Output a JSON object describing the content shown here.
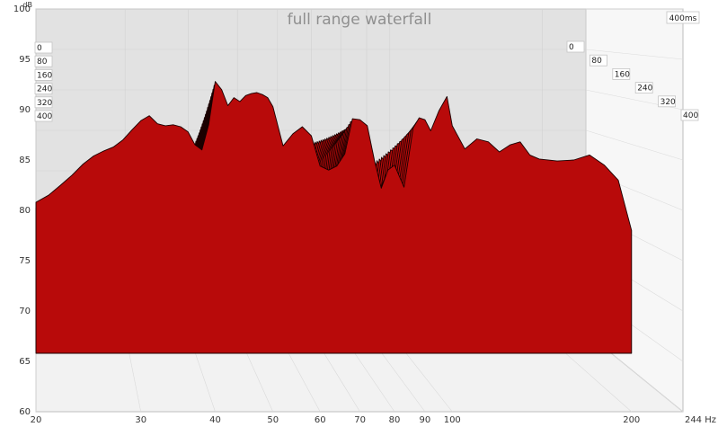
{
  "chart_data": {
    "type": "area",
    "title": "full range waterfall",
    "ylabel": "dB",
    "xlabel": "",
    "x_unit_label": "244 Hz",
    "x_scale": "log",
    "xlim": [
      20,
      244
    ],
    "ylim": [
      60,
      100
    ],
    "x_ticks": [
      20,
      30,
      40,
      50,
      60,
      70,
      80,
      90,
      100,
      200
    ],
    "y_ticks": [
      60,
      65,
      70,
      75,
      80,
      85,
      90,
      95,
      100
    ],
    "z_label": "400ms",
    "time_ticks_left": [
      "0",
      "80",
      "160",
      "240",
      "320",
      "400"
    ],
    "time_ticks_right": [
      "0",
      "80",
      "160",
      "240",
      "320",
      "400"
    ],
    "grid": true,
    "fill_color": "#b80a0a",
    "line_color": "#1a0000",
    "back_wall_color": "#e2e2e2",
    "floor_color": "#f2f2f2",
    "slice_count": 26,
    "front_slice_ms": 0,
    "back_slice_ms": 400,
    "front_slice": {
      "freq_hz": [
        20,
        21,
        22,
        23,
        24,
        25,
        26,
        27,
        28,
        29,
        30,
        31,
        32,
        33,
        34,
        35,
        36,
        37,
        38,
        39,
        40,
        41,
        42,
        43,
        44,
        45,
        46,
        47,
        48,
        49,
        50,
        52,
        54,
        56,
        58,
        60,
        62,
        64,
        66,
        68,
        70,
        72,
        74,
        76,
        78,
        80,
        83,
        86,
        88,
        90,
        92,
        95,
        98,
        100,
        105,
        110,
        115,
        120,
        125,
        130,
        135,
        140,
        150,
        160,
        170,
        180,
        190,
        200
      ],
      "db": [
        80.8,
        81.5,
        82.5,
        83.5,
        84.6,
        85.4,
        85.9,
        86.3,
        87.0,
        88.0,
        88.9,
        89.4,
        88.6,
        88.4,
        88.5,
        88.3,
        87.8,
        86.5,
        86.0,
        88.5,
        92.8,
        92.0,
        90.4,
        91.2,
        90.8,
        91.4,
        91.6,
        91.7,
        91.5,
        91.2,
        90.3,
        86.4,
        87.6,
        88.3,
        87.4,
        84.4,
        84.0,
        84.4,
        85.6,
        89.1,
        89.0,
        88.4,
        85.0,
        82.2,
        84.0,
        84.5,
        82.3,
        88.2,
        89.2,
        89.0,
        87.9,
        89.9,
        91.3,
        88.4,
        86.1,
        87.1,
        86.8,
        85.8,
        86.5,
        86.8,
        85.5,
        85.1,
        84.9,
        85.0,
        85.5,
        84.5,
        83.0,
        78.0
      ]
    }
  }
}
